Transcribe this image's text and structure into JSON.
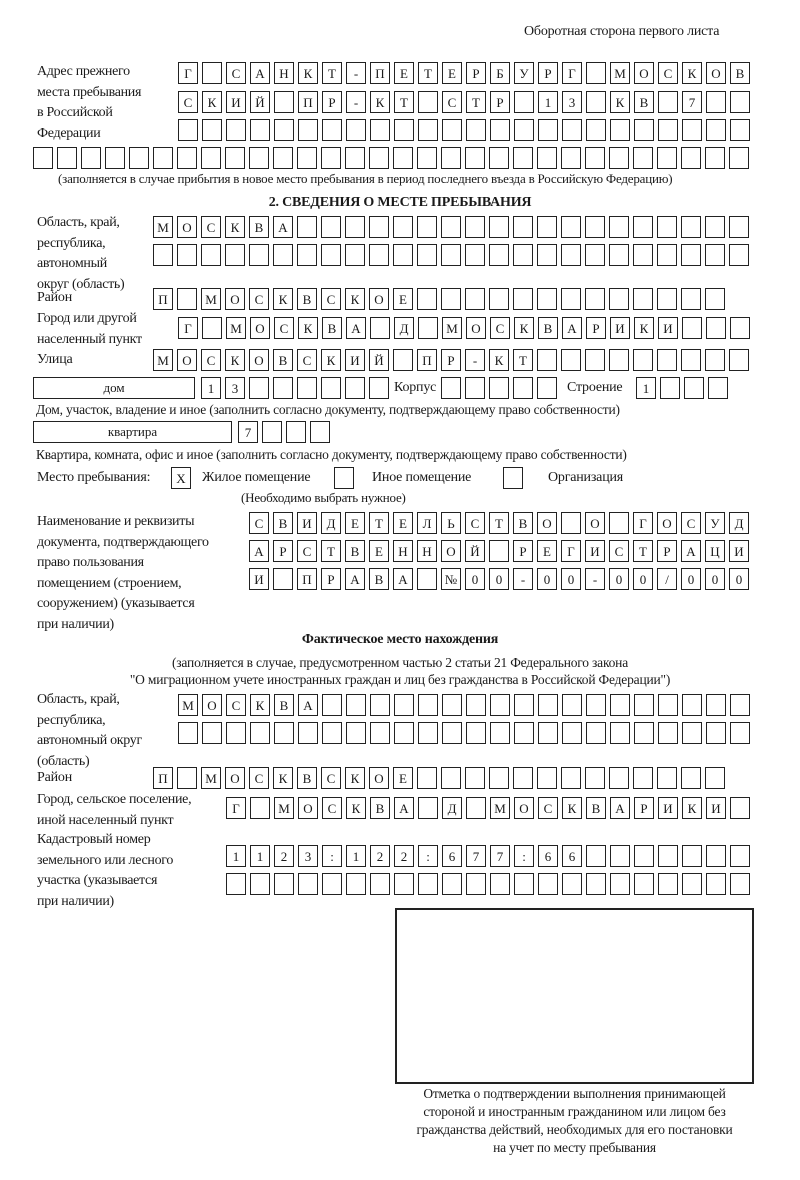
{
  "header": "Оборотная сторона первого листа",
  "previous_address": {
    "label_lines": [
      "Адрес прежнего",
      "места пребывания",
      "в Российской",
      "Федерации"
    ],
    "row1": [
      "Г",
      " ",
      "С",
      "А",
      "Н",
      "К",
      "Т",
      "-",
      "П",
      "Е",
      "Т",
      "Е",
      "Р",
      "Б",
      "У",
      "Р",
      "Г",
      " ",
      "М",
      "О",
      "С",
      "К",
      "О",
      "В"
    ],
    "row2": [
      "С",
      "К",
      "И",
      "Й",
      " ",
      "П",
      "Р",
      "-",
      "К",
      "Т",
      " ",
      "С",
      "Т",
      "Р",
      " ",
      "1",
      "3",
      " ",
      "К",
      "В",
      " ",
      "7",
      " ",
      " "
    ],
    "row3": [
      " ",
      " ",
      " ",
      " ",
      " ",
      " ",
      " ",
      " ",
      " ",
      " ",
      " ",
      " ",
      " ",
      " ",
      " ",
      " ",
      " ",
      " ",
      " ",
      " ",
      " ",
      " ",
      " ",
      " "
    ],
    "row4": [
      " ",
      " ",
      " ",
      " ",
      " ",
      " ",
      " ",
      " ",
      " ",
      " ",
      " ",
      " ",
      " ",
      " ",
      " ",
      " ",
      " ",
      " ",
      " ",
      " ",
      " ",
      " ",
      " ",
      " ",
      " ",
      " ",
      " ",
      " ",
      " ",
      " "
    ],
    "note": "(заполняется в случае прибытия в новое место пребывания в период последнего въезда в Российскую Федерацию)"
  },
  "section2": {
    "title": "2. СВЕДЕНИЯ О МЕСТЕ ПРЕБЫВАНИЯ",
    "region_label_lines": [
      "Область, край,",
      "республика,",
      "автономный",
      "округ (область)"
    ],
    "region_row1": [
      "М",
      "О",
      "С",
      "К",
      "В",
      "А",
      " ",
      " ",
      " ",
      " ",
      " ",
      " ",
      " ",
      " ",
      " ",
      " ",
      " ",
      " ",
      " ",
      " ",
      " ",
      " ",
      " ",
      " ",
      " "
    ],
    "region_row2": [
      " ",
      " ",
      " ",
      " ",
      " ",
      " ",
      " ",
      " ",
      " ",
      " ",
      " ",
      " ",
      " ",
      " ",
      " ",
      " ",
      " ",
      " ",
      " ",
      " ",
      " ",
      " ",
      " ",
      " ",
      " "
    ],
    "district_label": "Район",
    "district": [
      "П",
      " ",
      "М",
      "О",
      "С",
      "К",
      "В",
      "С",
      "К",
      "О",
      "Е",
      " ",
      " ",
      " ",
      " ",
      " ",
      " ",
      " ",
      " ",
      " ",
      " ",
      " ",
      " ",
      " "
    ],
    "city_label_lines": [
      "Город или другой",
      "населенный пункт"
    ],
    "city": [
      "Г",
      " ",
      "М",
      "О",
      "С",
      "К",
      "В",
      "А",
      " ",
      "Д",
      " ",
      "М",
      "О",
      "С",
      "К",
      "В",
      "А",
      "Р",
      "И",
      "К",
      "И",
      " ",
      " ",
      " "
    ],
    "street_label": "Улица",
    "street": [
      "М",
      "О",
      "С",
      "К",
      "О",
      "В",
      "С",
      "К",
      "И",
      "Й",
      " ",
      "П",
      "Р",
      "-",
      "К",
      "Т",
      " ",
      " ",
      " ",
      " ",
      " ",
      " ",
      " ",
      " ",
      " "
    ],
    "house_type": "дом",
    "house": [
      "1",
      "3",
      " ",
      " ",
      " ",
      " ",
      " ",
      " "
    ],
    "korpus_label": "Корпус",
    "korpus": [
      " ",
      " ",
      " ",
      " ",
      " "
    ],
    "building_label": "Строение",
    "building": [
      "1",
      " ",
      " ",
      " "
    ],
    "house_note": "Дом, участок, владение и иное (заполнить согласно документу, подтверждающему право собственности)",
    "apartment_type": "квартира",
    "apartment": [
      "7",
      " ",
      " ",
      " "
    ],
    "apartment_note": "Квартира, комната, офис и иное (заполнить согласно документу, подтверждающему право собственности)",
    "stay_place_label": "Место пребывания:",
    "option_residential_mark": "Х",
    "option_residential": "Жилое помещение",
    "option_other_mark": " ",
    "option_other": "Иное помещение",
    "option_org_mark": " ",
    "option_org": "Организация",
    "choose_note": "(Необходимо выбрать нужное)",
    "document_label_lines": [
      "Наименование и реквизиты",
      "документа, подтверждающего",
      "право пользования",
      "помещением (строением,",
      "сооружением) (указывается",
      "при наличии)"
    ],
    "document_row1": [
      "С",
      "В",
      "И",
      "Д",
      "Е",
      "Т",
      "Е",
      "Л",
      "Ь",
      "С",
      "Т",
      "В",
      "О",
      " ",
      "О",
      " ",
      "Г",
      "О",
      "С",
      "У",
      "Д"
    ],
    "document_row2": [
      "А",
      "Р",
      "С",
      "Т",
      "В",
      "Е",
      "Н",
      "Н",
      "О",
      "Й",
      " ",
      "Р",
      "Е",
      "Г",
      "И",
      "С",
      "Т",
      "Р",
      "А",
      "Ц",
      "И"
    ],
    "document_row3": [
      "И",
      " ",
      "П",
      "Р",
      "А",
      "В",
      "А",
      " ",
      "№",
      "0",
      "0",
      "-",
      "0",
      "0",
      "-",
      "0",
      "0",
      "/",
      "0",
      "0",
      "0"
    ]
  },
  "actual": {
    "title": "Фактическое место нахождения",
    "note_line1": "(заполняется в случае, предусмотренном частью 2 статьи 21 Федерального закона",
    "note_line2": "\"О миграционном учете иностранных граждан и лиц без гражданства в Российской Федерации\")",
    "region_label_lines": [
      "Область, край,",
      "республика,",
      "автономный округ",
      "(область)"
    ],
    "region_row1": [
      "М",
      "О",
      "С",
      "К",
      "В",
      "А",
      " ",
      " ",
      " ",
      " ",
      " ",
      " ",
      " ",
      " ",
      " ",
      " ",
      " ",
      " ",
      " ",
      " ",
      " ",
      " ",
      " ",
      " "
    ],
    "region_row2": [
      " ",
      " ",
      " ",
      " ",
      " ",
      " ",
      " ",
      " ",
      " ",
      " ",
      " ",
      " ",
      " ",
      " ",
      " ",
      " ",
      " ",
      " ",
      " ",
      " ",
      " ",
      " ",
      " ",
      " "
    ],
    "district_label": "Район",
    "district": [
      "П",
      " ",
      "М",
      "О",
      "С",
      "К",
      "В",
      "С",
      "К",
      "О",
      "Е",
      " ",
      " ",
      " ",
      " ",
      " ",
      " ",
      " ",
      " ",
      " ",
      " ",
      " ",
      " ",
      " "
    ],
    "city_label_lines": [
      "Город, сельское поселение,",
      "иной населенный пункт"
    ],
    "city": [
      "Г",
      " ",
      "М",
      "О",
      "С",
      "К",
      "В",
      "А",
      " ",
      "Д",
      " ",
      "М",
      "О",
      "С",
      "К",
      "В",
      "А",
      "Р",
      "И",
      "К",
      "И",
      " "
    ],
    "cadastral_label_lines": [
      "Кадастровый номер",
      "земельного или лесного",
      "участка (указывается",
      "при наличии)"
    ],
    "cadastral_row1": [
      "1",
      "1",
      "2",
      "3",
      ":",
      "1",
      "2",
      "2",
      ":",
      "6",
      "7",
      "7",
      ":",
      "6",
      "6",
      " ",
      " ",
      " ",
      " ",
      " ",
      " ",
      " "
    ],
    "cadastral_row2": [
      " ",
      " ",
      " ",
      " ",
      " ",
      " ",
      " ",
      " ",
      " ",
      " ",
      " ",
      " ",
      " ",
      " ",
      " ",
      " ",
      " ",
      " ",
      " ",
      " ",
      " ",
      " "
    ]
  },
  "stamp": {
    "caption_lines": [
      "Отметка о подтверждении выполнения принимающей",
      "стороной и иностранным гражданином или лицом без",
      "гражданства действий, необходимых для его постановки",
      "на учет по месту пребывания"
    ]
  }
}
